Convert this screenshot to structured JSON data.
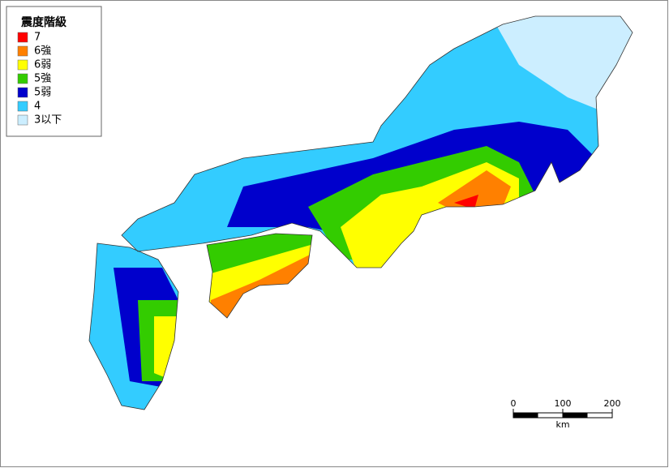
{
  "legend": {
    "title": "震度階級",
    "items": [
      {
        "label": "7",
        "color": "#ff0000"
      },
      {
        "label": "6強",
        "color": "#ff8000"
      },
      {
        "label": "6弱",
        "color": "#ffff00"
      },
      {
        "label": "5強",
        "color": "#33cc00"
      },
      {
        "label": "5弱",
        "color": "#0000cc"
      },
      {
        "label": "4",
        "color": "#33ccff"
      },
      {
        "label": "3以下",
        "color": "#cceeff"
      }
    ]
  },
  "scale_bar": {
    "ticks": [
      0,
      100,
      200
    ],
    "unit": "km"
  }
}
